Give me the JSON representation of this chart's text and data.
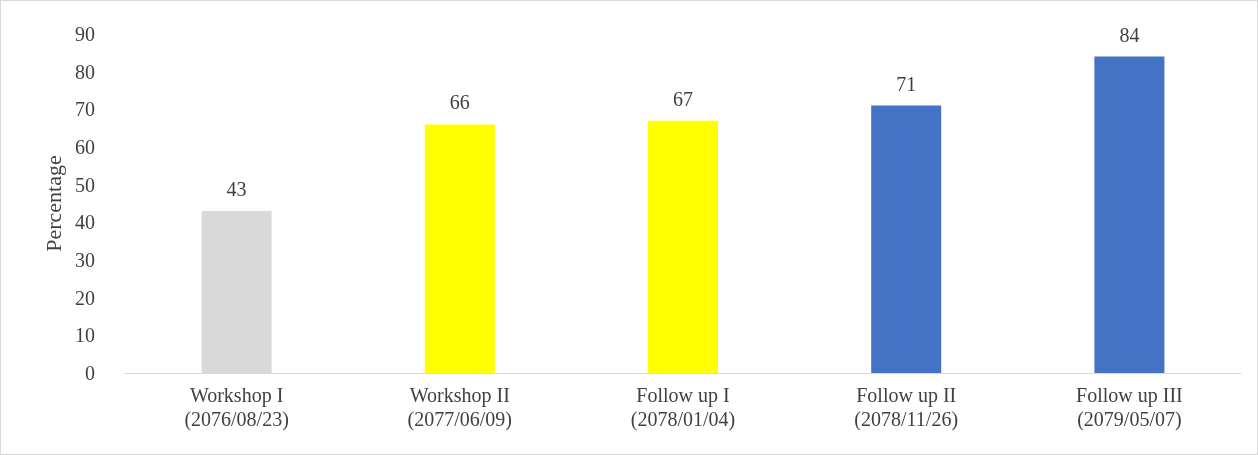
{
  "chart_data": {
    "type": "bar",
    "categories": [
      "Workshop I\n(2076/08/23)",
      "Workshop II\n(2077/06/09)",
      "Follow up I\n(2078/01/04)",
      "Follow up II\n(2078/11/26)",
      "Follow up III\n(2079/05/07)"
    ],
    "values": [
      43,
      66,
      67,
      71,
      84
    ],
    "colors": [
      "#d9d9d9",
      "#ffff00",
      "#ffff00",
      "#4472c4",
      "#4472c4"
    ],
    "ylabel": "Percentage",
    "ylim": [
      0,
      90
    ],
    "yticks": [
      0,
      10,
      20,
      30,
      40,
      50,
      60,
      70,
      80,
      90
    ],
    "data_labels": true,
    "grid": false
  }
}
